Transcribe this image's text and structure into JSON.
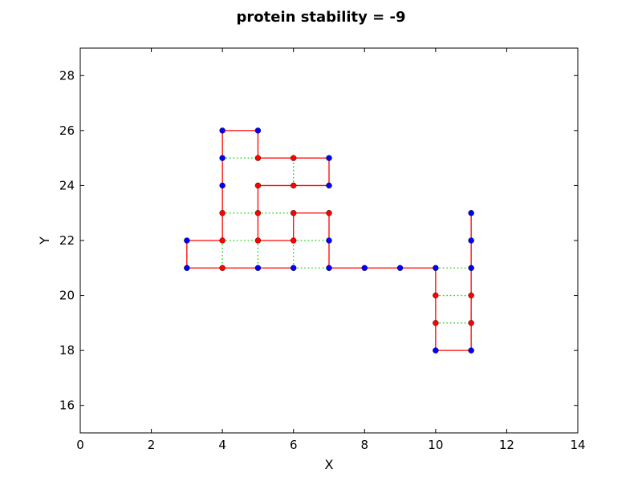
{
  "chart_data": {
    "type": "scatter",
    "title": "protein stability = -9",
    "xlabel": "X",
    "ylabel": "Y",
    "xlim": [
      0,
      14
    ],
    "ylim": [
      15,
      29
    ],
    "xticks": [
      0,
      2,
      4,
      6,
      8,
      10,
      12,
      14
    ],
    "yticks": [
      16,
      18,
      20,
      22,
      24,
      26,
      28
    ],
    "grid": false,
    "colors": {
      "H": "#ff0000",
      "P": "#0000ff",
      "backbone": "#ff0000",
      "contact": "#00cc00"
    },
    "residues": [
      {
        "x": 11,
        "y": 23,
        "type": "P"
      },
      {
        "x": 11,
        "y": 22,
        "type": "P"
      },
      {
        "x": 11,
        "y": 21,
        "type": "P"
      },
      {
        "x": 11,
        "y": 20,
        "type": "H"
      },
      {
        "x": 11,
        "y": 19,
        "type": "H"
      },
      {
        "x": 11,
        "y": 18,
        "type": "P"
      },
      {
        "x": 10,
        "y": 18,
        "type": "P"
      },
      {
        "x": 10,
        "y": 19,
        "type": "H"
      },
      {
        "x": 10,
        "y": 20,
        "type": "H"
      },
      {
        "x": 10,
        "y": 21,
        "type": "P"
      },
      {
        "x": 9,
        "y": 21,
        "type": "P"
      },
      {
        "x": 8,
        "y": 21,
        "type": "P"
      },
      {
        "x": 7,
        "y": 21,
        "type": "P"
      },
      {
        "x": 7,
        "y": 22,
        "type": "P"
      },
      {
        "x": 7,
        "y": 23,
        "type": "H"
      },
      {
        "x": 6,
        "y": 23,
        "type": "H"
      },
      {
        "x": 6,
        "y": 22,
        "type": "H"
      },
      {
        "x": 5,
        "y": 22,
        "type": "H"
      },
      {
        "x": 5,
        "y": 23,
        "type": "H"
      },
      {
        "x": 5,
        "y": 24,
        "type": "H"
      },
      {
        "x": 6,
        "y": 24,
        "type": "H"
      },
      {
        "x": 7,
        "y": 24,
        "type": "P"
      },
      {
        "x": 7,
        "y": 25,
        "type": "P"
      },
      {
        "x": 6,
        "y": 25,
        "type": "H"
      },
      {
        "x": 5,
        "y": 25,
        "type": "H"
      },
      {
        "x": 5,
        "y": 26,
        "type": "P"
      },
      {
        "x": 4,
        "y": 26,
        "type": "P"
      },
      {
        "x": 4,
        "y": 25,
        "type": "P"
      },
      {
        "x": 4,
        "y": 24,
        "type": "P"
      },
      {
        "x": 4,
        "y": 23,
        "type": "H"
      },
      {
        "x": 4,
        "y": 22,
        "type": "H"
      },
      {
        "x": 3,
        "y": 22,
        "type": "P"
      },
      {
        "x": 3,
        "y": 21,
        "type": "P"
      },
      {
        "x": 4,
        "y": 21,
        "type": "H"
      },
      {
        "x": 5,
        "y": 21,
        "type": "P"
      },
      {
        "x": 6,
        "y": 21,
        "type": "P"
      }
    ],
    "contacts": [
      [
        [
          10,
          20
        ],
        [
          11,
          20
        ]
      ],
      [
        [
          10,
          19
        ],
        [
          11,
          19
        ]
      ],
      [
        [
          10,
          21
        ],
        [
          11,
          21
        ]
      ],
      [
        [
          6,
          21
        ],
        [
          7,
          21
        ]
      ],
      [
        [
          6,
          21
        ],
        [
          6,
          22
        ]
      ],
      [
        [
          6,
          22
        ],
        [
          7,
          22
        ]
      ],
      [
        [
          5,
          22
        ],
        [
          5,
          21
        ]
      ],
      [
        [
          4,
          22
        ],
        [
          5,
          22
        ]
      ],
      [
        [
          4,
          22
        ],
        [
          4,
          21
        ]
      ],
      [
        [
          4,
          23
        ],
        [
          5,
          23
        ]
      ],
      [
        [
          5,
          23
        ],
        [
          6,
          23
        ]
      ],
      [
        [
          6,
          24
        ],
        [
          6,
          25
        ]
      ],
      [
        [
          4,
          25
        ],
        [
          5,
          25
        ]
      ]
    ]
  }
}
